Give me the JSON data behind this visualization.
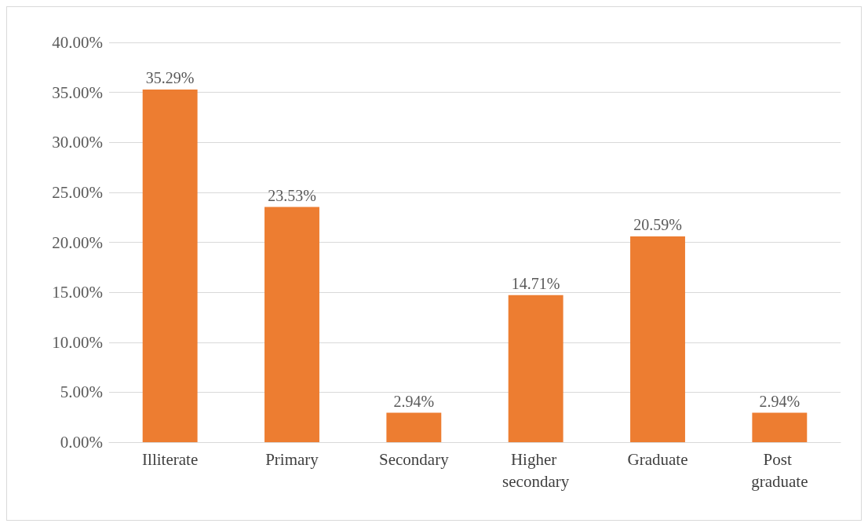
{
  "chart_data": {
    "type": "bar",
    "categories": [
      "Illiterate",
      "Primary",
      "Secondary",
      "Higher secondary",
      "Graduate",
      "Post graduate"
    ],
    "values": [
      35.29,
      23.53,
      2.94,
      14.71,
      20.59,
      2.94
    ],
    "value_labels": [
      "35.29%",
      "23.53%",
      "2.94%",
      "14.71%",
      "20.59%",
      "2.94%"
    ],
    "color": "#ed7d31",
    "ylim": [
      0,
      40
    ],
    "yticks": [
      {
        "value": 0,
        "label": "0.00%"
      },
      {
        "value": 5,
        "label": "5.00%"
      },
      {
        "value": 10,
        "label": "10.00%"
      },
      {
        "value": 15,
        "label": "15.00%"
      },
      {
        "value": 20,
        "label": "20.00%"
      },
      {
        "value": 25,
        "label": "25.00%"
      },
      {
        "value": 30,
        "label": "30.00%"
      },
      {
        "value": 35,
        "label": "35.00%"
      },
      {
        "value": 40,
        "label": "40.00%"
      }
    ],
    "grid": "y"
  }
}
